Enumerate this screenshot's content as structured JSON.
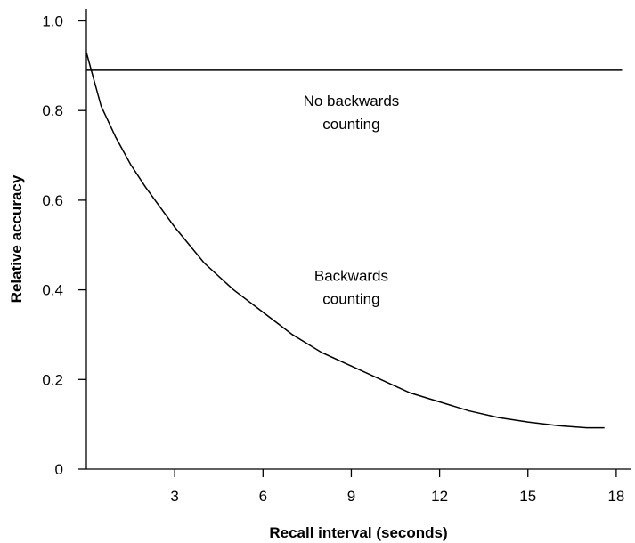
{
  "chart_data": {
    "type": "line",
    "title": "",
    "xlabel": "Recall interval (seconds)",
    "ylabel": "Relative accuracy",
    "xlim": [
      0,
      18.2
    ],
    "ylim": [
      0,
      1.05
    ],
    "x_ticks": [
      3,
      6,
      9,
      12,
      15,
      18
    ],
    "y_ticks": [
      0,
      0.2,
      0.4,
      0.6,
      0.8,
      1.0
    ],
    "x_tick_labels": [
      "3",
      "6",
      "9",
      "12",
      "15",
      "18"
    ],
    "y_tick_labels": [
      "0",
      "0.2",
      "0.4",
      "0.6",
      "0.8",
      "1.0"
    ],
    "grid": false,
    "series": [
      {
        "x": [
          0,
          18.2
        ],
        "y": [
          0.89,
          0.89
        ]
      },
      {
        "x": [
          0,
          0.5,
          1,
          1.5,
          2,
          3,
          4,
          5,
          6,
          7,
          8,
          9,
          10,
          11,
          12,
          13,
          14,
          15,
          16,
          17,
          17.6
        ],
        "y": [
          0.93,
          0.81,
          0.74,
          0.68,
          0.63,
          0.54,
          0.46,
          0.4,
          0.35,
          0.3,
          0.26,
          0.23,
          0.2,
          0.17,
          0.15,
          0.13,
          0.115,
          0.105,
          0.097,
          0.092,
          0.092
        ]
      }
    ],
    "annotations": [
      {
        "lines": [
          "No backwards",
          "counting"
        ],
        "x": 9.0,
        "y": 0.81
      },
      {
        "lines": [
          "Backwards",
          "counting"
        ],
        "x": 9.0,
        "y": 0.42
      }
    ]
  }
}
